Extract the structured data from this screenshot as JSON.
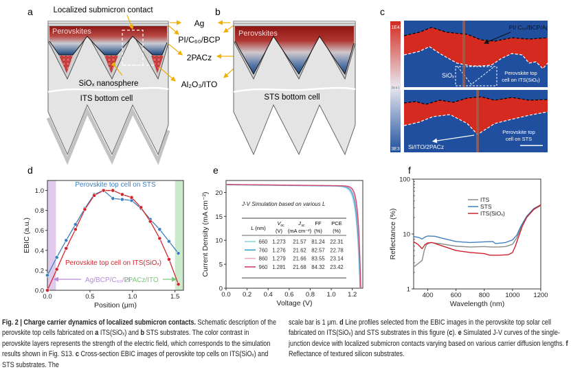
{
  "panel_labels": {
    "a": "a",
    "b": "b",
    "c": "c",
    "d": "d",
    "e": "e",
    "f": "f"
  },
  "panel_a": {
    "contact_label": "Localized submicron contact",
    "perovskite_label": "Perovskites",
    "nanosphere_label": "SiOₓ nanosphere",
    "bottom_cell_label": "ITS bottom cell"
  },
  "layer_labels": {
    "ag": "Ag",
    "pi": "PI/C₆₀/BCP",
    "pacz": "2PACz",
    "ito": "Al₂O₃/ITO"
  },
  "panel_b": {
    "perovskite_label": "Perovskites",
    "bottom_cell_label": "STS bottom cell"
  },
  "panel_c": {
    "colorbar_max": "1E4",
    "colorbar_unit": "(a.u.)",
    "colorbar_min": "3E3",
    "top_layers_label": "PI/ C₆₀/BCP/Ag",
    "siox_label": "SiOₓ",
    "top_image_label_1": "Perovskite top",
    "top_image_label_2": "cell on ITS(SiOₓ)",
    "bottom_image_label_1": "Perovskite top",
    "bottom_image_label_2": "cell on STS",
    "bottom_layers_label": "Si/ITO/2PACz",
    "colors": {
      "high": "#d42a20",
      "mid": "#e8e8ee",
      "low": "#1f4f9e"
    }
  },
  "chart_data": [
    {
      "id": "d",
      "type": "line",
      "xlabel": "Position (μm)",
      "ylabel": "EBIC (a.u.)",
      "xlim": [
        0,
        1.6
      ],
      "ylim": [
        0,
        1.1
      ],
      "xticks": [
        "0.0",
        "0.5",
        "1.0",
        "1.5"
      ],
      "yticks": [
        "0.0",
        "0.2",
        "0.4",
        "0.6",
        "0.8",
        "1.0"
      ],
      "shaded_regions": [
        {
          "label": "Ag/BCP/C₆₀/PI",
          "range": [
            0,
            0.1
          ],
          "color": "#b58ad0"
        },
        {
          "label": "2PACz/ITO",
          "range": [
            1.5,
            1.6
          ],
          "color": "#8ccf8c"
        }
      ],
      "x": [
        0,
        0.11,
        0.22,
        0.33,
        0.44,
        0.55,
        0.66,
        0.77,
        0.88,
        0.99,
        1.1,
        1.21,
        1.32,
        1.43,
        1.54
      ],
      "series": [
        {
          "name": "Perovskite top cell on STS",
          "color": "#3b7fc0",
          "values": [
            0.15,
            0.33,
            0.5,
            0.66,
            0.82,
            0.96,
            1.0,
            0.92,
            0.91,
            0.9,
            0.82,
            0.71,
            0.61,
            0.49,
            0.37
          ]
        },
        {
          "name": "Perovskite top cell on ITS(SiOₓ)",
          "color": "#d0262e",
          "values": [
            0.0,
            0.21,
            0.42,
            0.61,
            0.81,
            0.95,
            1.0,
            1.0,
            0.96,
            0.93,
            0.83,
            0.69,
            0.52,
            0.31,
            0.06
          ]
        }
      ]
    },
    {
      "id": "e",
      "type": "line",
      "xlabel": "Voltage (V)",
      "ylabel": "Current Density (mA cm⁻²)",
      "xlim": [
        0,
        1.3
      ],
      "ylim": [
        0,
        22.5
      ],
      "xticks": [
        "0.0",
        "0.2",
        "0.4",
        "0.6",
        "0.8",
        "1.0",
        "1.2"
      ],
      "yticks": [
        "0",
        "5",
        "10",
        "15",
        "20"
      ],
      "table": {
        "title": "J-V Simulation based on various L",
        "headers": [
          [
            "L (nm)",
            ""
          ],
          [
            "V",
            "oc",
            "(V)"
          ],
          [
            "J",
            "sc",
            "(mA cm⁻²)"
          ],
          [
            "FF",
            "(%)"
          ],
          [
            "PCE",
            "(%)"
          ]
        ],
        "rows": [
          {
            "L": "660",
            "Voc": "1.273",
            "Jsc": "21.57",
            "FF": "81.24",
            "PCE": "22.31",
            "color": "#90d8ea"
          },
          {
            "L": "760",
            "Voc": "1.276",
            "Jsc": "21.62",
            "FF": "82.57",
            "PCE": "22.78",
            "color": "#3a9cc8"
          },
          {
            "L": "860",
            "Voc": "1.279",
            "Jsc": "21.66",
            "FF": "83.55",
            "PCE": "23.14",
            "color": "#e8a8c4"
          },
          {
            "L": "960",
            "Voc": "1.281",
            "Jsc": "21.68",
            "FF": "84.32",
            "PCE": "23.42",
            "color": "#d63d6c"
          }
        ]
      }
    },
    {
      "id": "f",
      "type": "line",
      "xlabel": "Wavelength (nm)",
      "ylabel": "Reflectance (%)",
      "xlim": [
        300,
        1200
      ],
      "ylim": [
        1,
        100
      ],
      "yscale": "log",
      "xticks": [
        "400",
        "600",
        "800",
        "1000",
        "1200"
      ],
      "yticks": [
        "1",
        "10",
        "100"
      ],
      "legend": "top-center",
      "series": [
        {
          "name": "ITS",
          "color": "#8a8a8a",
          "x": [
            300,
            340,
            360,
            375,
            390,
            420,
            500,
            600,
            700,
            800,
            850,
            900,
            950,
            1000,
            1030,
            1060,
            1100,
            1150,
            1200
          ],
          "values": [
            2.5,
            3.0,
            3.3,
            5.0,
            6.4,
            7.0,
            6.6,
            6.0,
            5.8,
            5.9,
            5.8,
            5.8,
            5.9,
            6.5,
            8.5,
            13,
            20,
            28,
            33
          ]
        },
        {
          "name": "STS",
          "color": "#3f7fbf",
          "x": [
            300,
            340,
            360,
            380,
            400,
            450,
            500,
            600,
            700,
            800,
            860,
            880,
            950,
            1000,
            1030,
            1060,
            1100,
            1150,
            1200
          ],
          "values": [
            9.0,
            8.6,
            8.1,
            8.8,
            9.2,
            9.1,
            8.4,
            7.3,
            7.0,
            7.2,
            7.3,
            6.7,
            7.0,
            7.8,
            9.5,
            14,
            21,
            29,
            34
          ]
        },
        {
          "name": "ITS(SiOₓ)",
          "color": "#d0202a",
          "x": [
            300,
            330,
            360,
            380,
            400,
            430,
            500,
            600,
            700,
            800,
            840,
            900,
            970,
            1000,
            1020,
            1040,
            1070,
            1100,
            1150,
            1200
          ],
          "values": [
            7.2,
            6.5,
            5.4,
            6.4,
            6.9,
            7.0,
            6.1,
            5.0,
            4.6,
            4.4,
            4.1,
            4.1,
            4.2,
            4.6,
            6.0,
            8.5,
            14,
            20,
            28,
            34
          ]
        }
      ]
    }
  ],
  "caption": {
    "left": [
      {
        "t": "Fig. 2 | Charge carrier dynamics of localized submicron contacts.",
        "b": true
      },
      {
        "t": " Schematic description of the perovskite top cells fabricated on ",
        "b": false
      },
      {
        "t": "a",
        "b": true
      },
      {
        "t": " ITS(SiOₓ) and ",
        "b": false
      },
      {
        "t": "b",
        "b": true
      },
      {
        "t": " STS substrates. The color contrast in perovskite layers represents the strength of the electric field, which corresponds to the simulation results shown in Fig. S13. ",
        "b": false
      },
      {
        "t": "c",
        "b": true
      },
      {
        "t": " Cross-section EBIC images of perovskite top cells on ITS(SiOₓ) and STS substrates. The",
        "b": false
      }
    ],
    "right": [
      {
        "t": "scale bar is 1 μm. ",
        "b": false
      },
      {
        "t": "d",
        "b": true
      },
      {
        "t": " Line profiles selected from the EBIC images in the perovskite top solar cell fabricated on ITS(SiOₓ) and STS substrates in this figure (",
        "b": false
      },
      {
        "t": "c",
        "b": true
      },
      {
        "t": "). ",
        "b": false
      },
      {
        "t": "e",
        "b": true
      },
      {
        "t": " Simulated J-V curves of the single-junction device with localized submicron contacts varying based on various carrier diffusion lengths. ",
        "b": false
      },
      {
        "t": "f",
        "b": true
      },
      {
        "t": " Reflectance of textured silicon substrates.",
        "b": false
      }
    ]
  }
}
